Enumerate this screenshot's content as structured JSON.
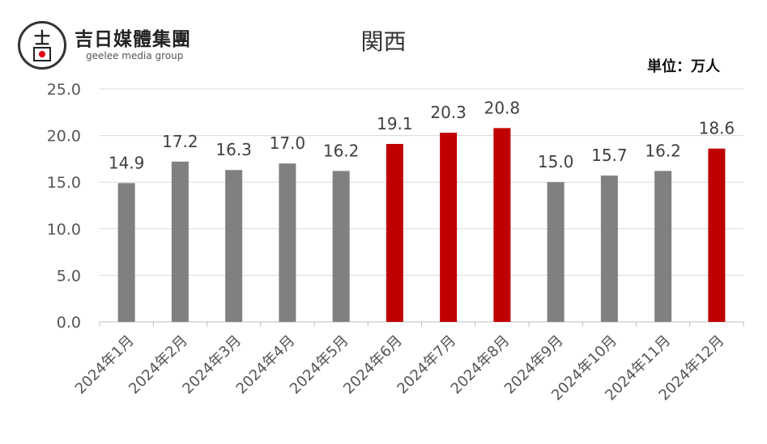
{
  "logo": {
    "name": "吉日媒體集團",
    "sub": "geelee media group"
  },
  "unit_label": "単位：万人",
  "colors": {
    "gray": "#808080",
    "red": "#c00000"
  },
  "chart_data": {
    "type": "bar",
    "title": "関西",
    "categories": [
      "2024年1月",
      "2024年2月",
      "2024年3月",
      "2024年4月",
      "2024年5月",
      "2024年6月",
      "2024年7月",
      "2024年8月",
      "2024年9月",
      "2024年10月",
      "2024年11月",
      "2024年12月"
    ],
    "values": [
      14.9,
      17.2,
      16.3,
      17.0,
      16.2,
      19.1,
      20.3,
      20.8,
      15.0,
      15.7,
      16.2,
      18.6
    ],
    "data_labels": [
      "14.9",
      "17.2",
      "16.3",
      "17.0",
      "16.2",
      "19.1",
      "20.3",
      "20.8",
      "15.0",
      "15.7",
      "16.2",
      "18.6"
    ],
    "bar_colors": [
      "gray",
      "gray",
      "gray",
      "gray",
      "gray",
      "red",
      "red",
      "red",
      "gray",
      "gray",
      "gray",
      "red"
    ],
    "ylim": [
      0,
      25
    ],
    "yticks": [
      "0.0",
      "5.0",
      "10.0",
      "15.0",
      "20.0",
      "25.0"
    ],
    "grid": true,
    "xlabel": "",
    "ylabel": ""
  }
}
